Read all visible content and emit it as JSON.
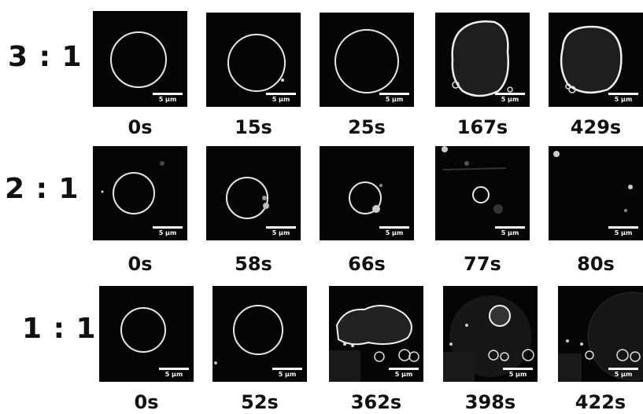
{
  "rows": [
    {
      "ratio": "3 : 1",
      "times": [
        "0s",
        "15s",
        "25s",
        "167s",
        "429s"
      ]
    },
    {
      "ratio": "2 : 1",
      "times": [
        "0s",
        "58s",
        "66s",
        "77s",
        "80s"
      ]
    },
    {
      "ratio": "1 : 1",
      "times": [
        "0s",
        "52s",
        "362s",
        "398s",
        "422s"
      ]
    }
  ],
  "scale_bar_label": "5 μm"
}
